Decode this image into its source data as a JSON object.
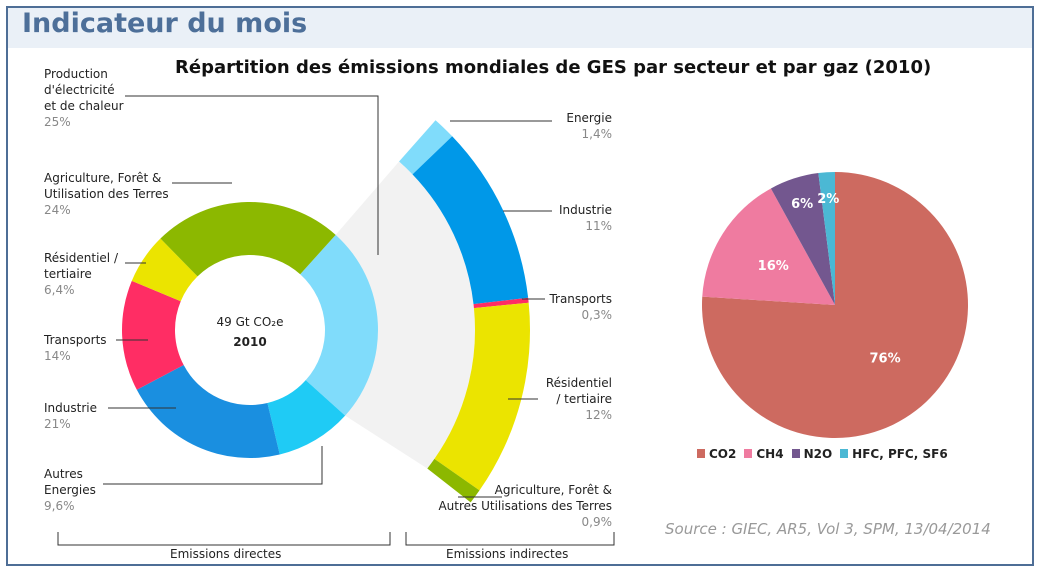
{
  "header": {
    "title": "Indicateur du mois"
  },
  "center": {
    "value": "49 Gt CO₂e",
    "year": "2010"
  },
  "brackets": {
    "direct": "Emissions directes",
    "indirect": "Emissions indirectes"
  },
  "source": "Source : GIEC, AR5, Vol 3, SPM, 13/04/2014",
  "chart_data": [
    {
      "type": "pie",
      "title": "Répartition des émissions mondiales de GES par secteur et par gaz (2010)",
      "subtitle": "Emissions directes (donut)",
      "categories": [
        "Production d'électricité et de chaleur",
        "Autres Energies",
        "Industrie",
        "Transports",
        "Résidentiel / tertiaire",
        "Agriculture, Forêt & Utilisation des Terres"
      ],
      "labels": [
        "25%",
        "9,6%",
        "21%",
        "14%",
        "6,4%",
        "24%"
      ],
      "values": [
        25,
        9.6,
        21,
        14,
        6.4,
        24
      ],
      "colors": [
        "#80dcfb",
        "#1fcbf5",
        "#1a8fe0",
        "#ff2d64",
        "#ebe400",
        "#8cb800"
      ]
    },
    {
      "type": "pie",
      "subtitle": "Emissions indirectes (arc)",
      "categories": [
        "Energie",
        "Industrie",
        "Transports",
        "Résidentiel / tertiaire",
        "Agriculture, Forêt & Autres Utilisations des Terres"
      ],
      "labels": [
        "1,4%",
        "11%",
        "0,3%",
        "12%",
        "0,9%"
      ],
      "values": [
        1.4,
        11,
        0.3,
        12,
        0.9
      ],
      "colors": [
        "#80dcfb",
        "#0098e8",
        "#ff2d64",
        "#ebe400",
        "#8cb800"
      ]
    },
    {
      "type": "pie",
      "subtitle": "Par gaz",
      "categories": [
        "CO2",
        "CH4",
        "N2O",
        "HFC, PFC, SF6"
      ],
      "labels": [
        "76%",
        "16%",
        "6%",
        "2%"
      ],
      "values": [
        76,
        16,
        6,
        2
      ],
      "colors": [
        "#cd6a60",
        "#ef7ba0",
        "#73578f",
        "#4bb8d4"
      ],
      "legend": "bottom"
    }
  ]
}
